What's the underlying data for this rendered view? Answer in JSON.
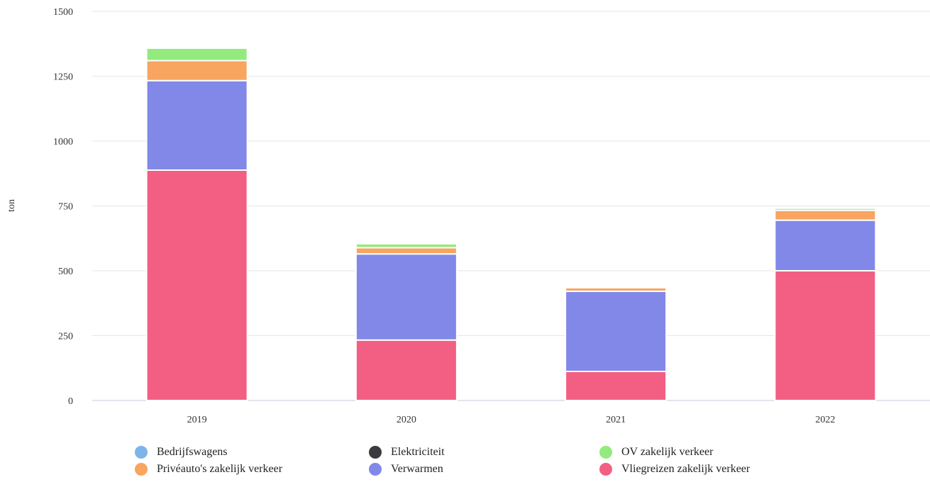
{
  "chart_data": {
    "type": "bar",
    "stacked": true,
    "title": "",
    "xlabel": "",
    "ylabel": "ton",
    "categories": [
      "2019",
      "2020",
      "2021",
      "2022"
    ],
    "ylim": [
      0,
      1500
    ],
    "yticks": [
      0,
      250,
      500,
      750,
      1000,
      1250,
      1500
    ],
    "grid": true,
    "legend_position": "bottom",
    "series": [
      {
        "name": "Vliegreizen zakelijk verkeer",
        "color": "#f25f82",
        "values": [
          888,
          233,
          112,
          500
        ]
      },
      {
        "name": "Verwarmen",
        "color": "#8188e8",
        "values": [
          345,
          332,
          309,
          195
        ]
      },
      {
        "name": "Elektriciteit",
        "color": "#3a3a3f",
        "values": [
          0,
          0,
          0,
          0
        ]
      },
      {
        "name": "Bedrijfswagens",
        "color": "#7db4ea",
        "values": [
          0,
          0,
          0,
          0
        ]
      },
      {
        "name": "Privéauto's zakelijk verkeer",
        "color": "#f7a55f",
        "values": [
          77,
          24,
          14,
          38
        ]
      },
      {
        "name": "OV zakelijk verkeer",
        "color": "#93ea7d",
        "values": [
          48,
          15,
          5,
          8
        ]
      }
    ],
    "legend_order": [
      "Bedrijfswagens",
      "Elektriciteit",
      "OV zakelijk verkeer",
      "Privéauto's zakelijk verkeer",
      "Verwarmen",
      "Vliegreizen zakelijk verkeer"
    ]
  }
}
